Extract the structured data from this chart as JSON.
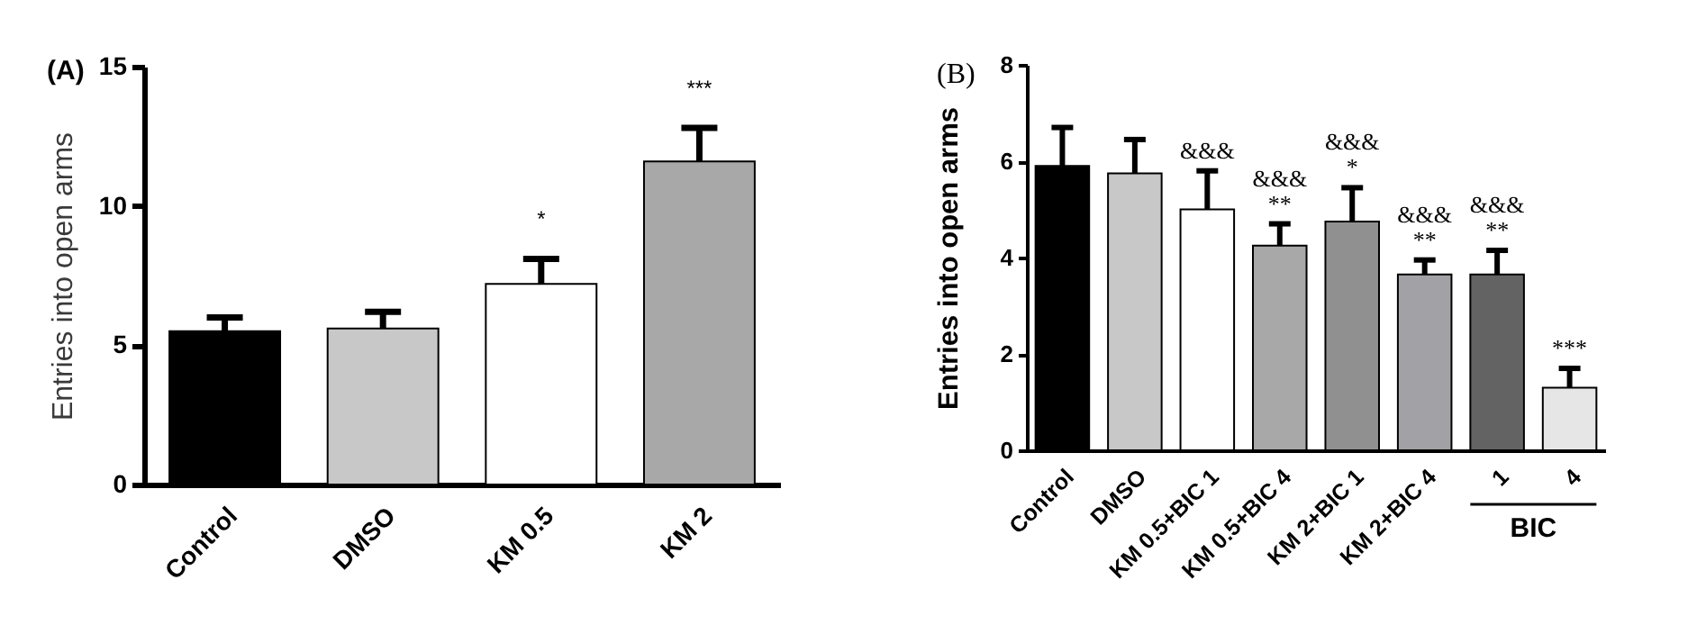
{
  "chart_data": [
    {
      "type": "bar",
      "title": "(A)",
      "ylabel": "Entries into open arms",
      "categories": [
        "Control",
        "DMSO",
        "KM 0.5",
        "KM 2"
      ],
      "values": [
        5.5,
        5.6,
        7.2,
        11.6
      ],
      "errors": [
        [
          5.5,
          6.0
        ],
        [
          5.6,
          6.2
        ],
        [
          7.2,
          8.1
        ],
        [
          11.6,
          12.8
        ]
      ],
      "colors": [
        "#000000",
        "#c8c8c8",
        "#ffffff",
        "#a8a8a8"
      ],
      "ylim": [
        0,
        15
      ],
      "yticks": [
        0,
        5,
        10,
        15
      ],
      "annotations": [
        {
          "text": "*",
          "x": "KM 0.5",
          "y": 8.1
        },
        {
          "text": "***",
          "x": "KM 2",
          "y": 12.8
        }
      ]
    },
    {
      "type": "bar",
      "title": "(B)",
      "ylabel": "Entries into open arms",
      "categories": [
        "Control",
        "DMSO",
        "KM 0.5+BIC 1",
        "KM 0.5+BIC 4",
        "KM 2+BIC 1",
        "KM 2+BIC 4",
        "1",
        "4"
      ],
      "values": [
        5.9,
        5.75,
        5.0,
        4.25,
        4.75,
        3.65,
        3.65,
        1.3
      ],
      "errors": [
        [
          5.9,
          6.7
        ],
        [
          5.75,
          6.45
        ],
        [
          5.0,
          5.8
        ],
        [
          4.25,
          4.7
        ],
        [
          4.75,
          5.45
        ],
        [
          3.65,
          3.95
        ],
        [
          3.65,
          4.15
        ],
        [
          1.3,
          1.7
        ]
      ],
      "colors": [
        "#000000",
        "#c8c8c8",
        "#ffffff",
        "#a8a8a8",
        "#909090",
        "#a2a2a6",
        "#636363",
        "#e6e6e6"
      ],
      "ylim": [
        0,
        8
      ],
      "yticks": [
        0,
        2,
        4,
        6,
        8
      ],
      "annotations": [
        {
          "text": "&&&",
          "x": "KM 0.5+BIC 1",
          "y": 5.8
        },
        {
          "text": "&&&",
          "x": "KM 0.5+BIC 4",
          "y": 4.7
        },
        {
          "text": "**",
          "x": "KM 0.5+BIC 4",
          "y": 4.7
        },
        {
          "text": "&&&",
          "x": "KM 2+BIC 1",
          "y": 5.45
        },
        {
          "text": "*",
          "x": "KM 2+BIC 1",
          "y": 5.45
        },
        {
          "text": "&&&",
          "x": "KM 2+BIC 4",
          "y": 3.95
        },
        {
          "text": "**",
          "x": "KM 2+BIC 4",
          "y": 3.95
        },
        {
          "text": "&&&",
          "x": "1",
          "y": 4.15
        },
        {
          "text": "**",
          "x": "1",
          "y": 4.15
        },
        {
          "text": "***",
          "x": "4",
          "y": 1.7
        },
        "BIC"
      ]
    }
  ]
}
